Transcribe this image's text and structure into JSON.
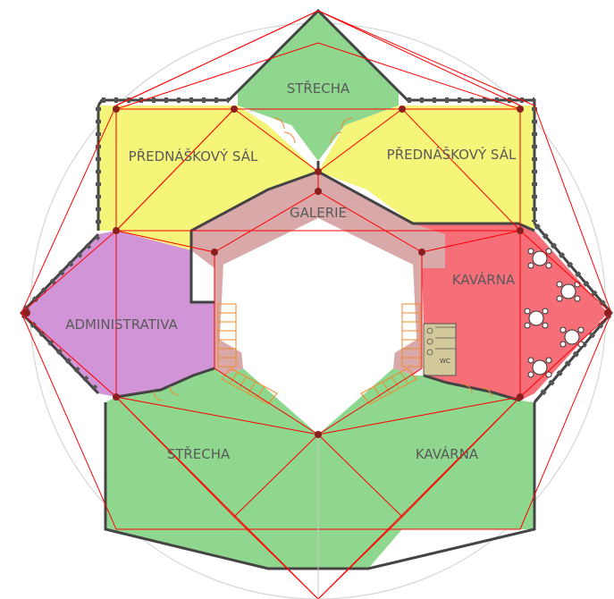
{
  "plan": {
    "rooms": [
      {
        "id": "strecha_top",
        "label": "STŘECHA",
        "color": "#8fd68f"
      },
      {
        "id": "sal_left",
        "label": "PŘEDNÁŠKOVÝ SÁL",
        "color": "#f5f57a"
      },
      {
        "id": "sal_right",
        "label": "PŘEDNÁŠKOVÝ SÁL",
        "color": "#f5f57a"
      },
      {
        "id": "galerie",
        "label": "GALERIE",
        "color": "#d9a8a8"
      },
      {
        "id": "kavarna_right",
        "label": "KAVÁRNA",
        "color": "#f56e78"
      },
      {
        "id": "administrativa",
        "label": "ADMINISTRATIVA",
        "color": "#d194d6"
      },
      {
        "id": "strecha_bottom",
        "label": "STŘECHA",
        "color": "#8fd68f"
      },
      {
        "id": "kavarna_bottom",
        "label": "KAVÁRNA",
        "color": "#8fd68f"
      }
    ],
    "wc_label": "WC",
    "colors": {
      "grid_line": "#ff0000",
      "circle": "#c8c8c8",
      "wall": "#444444",
      "stairs": "#f08a2c",
      "wc": "#d2c89a"
    }
  }
}
